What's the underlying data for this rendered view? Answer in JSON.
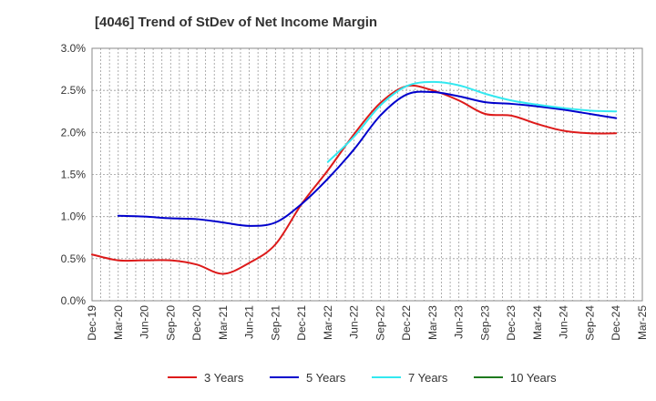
{
  "chart_data": {
    "type": "line",
    "title": "[4046]  Trend of StDev of Net Income Margin",
    "xlabel": "",
    "ylabel": "",
    "x_ticks": [
      "Dec-19",
      "Mar-20",
      "Jun-20",
      "Sep-20",
      "Dec-20",
      "Mar-21",
      "Jun-21",
      "Sep-21",
      "Dec-21",
      "Mar-22",
      "Jun-22",
      "Sep-22",
      "Dec-22",
      "Mar-23",
      "Jun-23",
      "Sep-23",
      "Dec-23",
      "Mar-24",
      "Jun-24",
      "Sep-24",
      "Dec-24",
      "Mar-25"
    ],
    "y_ticks": [
      "0.0%",
      "0.5%",
      "1.0%",
      "1.5%",
      "2.0%",
      "2.5%",
      "3.0%"
    ],
    "ylim": [
      0,
      3.0
    ],
    "y_unit": "%",
    "grid": true,
    "legend_position": "bottom",
    "series": [
      {
        "name": "3 Years",
        "color": "#dd1a1a",
        "points": [
          [
            "Dec-19",
            0.55
          ],
          [
            "Mar-20",
            0.48
          ],
          [
            "Jun-20",
            0.48
          ],
          [
            "Sep-20",
            0.48
          ],
          [
            "Dec-20",
            0.43
          ],
          [
            "Mar-21",
            0.32
          ],
          [
            "Jun-21",
            0.45
          ],
          [
            "Sep-21",
            0.67
          ],
          [
            "Dec-21",
            1.15
          ],
          [
            "Mar-22",
            1.55
          ],
          [
            "Jun-22",
            1.98
          ],
          [
            "Sep-22",
            2.35
          ],
          [
            "Dec-22",
            2.55
          ],
          [
            "Mar-23",
            2.5
          ],
          [
            "Jun-23",
            2.38
          ],
          [
            "Sep-23",
            2.22
          ],
          [
            "Dec-23",
            2.2
          ],
          [
            "Mar-24",
            2.1
          ],
          [
            "Jun-24",
            2.02
          ],
          [
            "Sep-24",
            1.99
          ],
          [
            "Dec-24",
            1.99
          ]
        ]
      },
      {
        "name": "5 Years",
        "color": "#0000cc",
        "points": [
          [
            "Mar-20",
            1.01
          ],
          [
            "Jun-20",
            1.0
          ],
          [
            "Sep-20",
            0.98
          ],
          [
            "Dec-20",
            0.97
          ],
          [
            "Mar-21",
            0.93
          ],
          [
            "Jun-21",
            0.89
          ],
          [
            "Sep-21",
            0.93
          ],
          [
            "Dec-21",
            1.15
          ],
          [
            "Mar-22",
            1.45
          ],
          [
            "Jun-22",
            1.8
          ],
          [
            "Sep-22",
            2.2
          ],
          [
            "Dec-22",
            2.45
          ],
          [
            "Mar-23",
            2.48
          ],
          [
            "Jun-23",
            2.43
          ],
          [
            "Sep-23",
            2.36
          ],
          [
            "Dec-23",
            2.34
          ],
          [
            "Mar-24",
            2.31
          ],
          [
            "Jun-24",
            2.27
          ],
          [
            "Sep-24",
            2.22
          ],
          [
            "Dec-24",
            2.17
          ]
        ]
      },
      {
        "name": "7 Years",
        "color": "#33e8f0",
        "points": [
          [
            "Mar-22",
            1.65
          ],
          [
            "Jun-22",
            1.95
          ],
          [
            "Sep-22",
            2.32
          ],
          [
            "Dec-22",
            2.55
          ],
          [
            "Mar-23",
            2.6
          ],
          [
            "Jun-23",
            2.56
          ],
          [
            "Sep-23",
            2.46
          ],
          [
            "Dec-23",
            2.38
          ],
          [
            "Mar-24",
            2.33
          ],
          [
            "Jun-24",
            2.29
          ],
          [
            "Sep-24",
            2.26
          ],
          [
            "Dec-24",
            2.25
          ]
        ]
      },
      {
        "name": "10 Years",
        "color": "#1e7a1e",
        "points": []
      }
    ]
  }
}
